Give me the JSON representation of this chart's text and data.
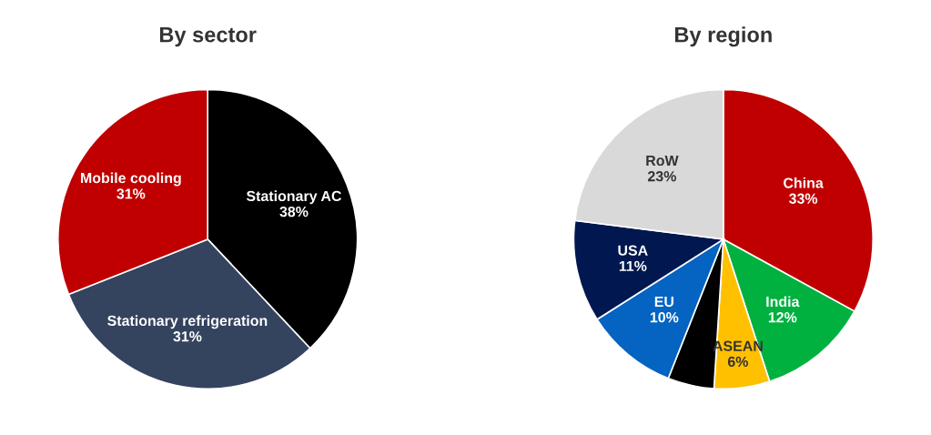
{
  "chart_data": [
    {
      "type": "pie",
      "title": "By sector",
      "categories": [
        "Stationary AC",
        "Stationary refrigeration",
        "Mobile cooling"
      ],
      "values": [
        38,
        31,
        31
      ],
      "colors": [
        "#000000",
        "#34435e",
        "#c00000"
      ],
      "value_labels": [
        "38%",
        "31%",
        "31%"
      ]
    },
    {
      "type": "pie",
      "title": "By region",
      "categories": [
        "China",
        "India",
        "ASEAN",
        null,
        "EU",
        "USA",
        "RoW"
      ],
      "values": [
        33,
        12,
        6,
        5,
        10,
        11,
        23
      ],
      "colors": [
        "#c00000",
        "#00b140",
        "#ffc000",
        "#000000",
        "#0563c1",
        "#00174f",
        "#d9d9d9"
      ],
      "value_labels": [
        "33%",
        "12%",
        "6%",
        null,
        "10%",
        "11%",
        "23%"
      ]
    }
  ]
}
